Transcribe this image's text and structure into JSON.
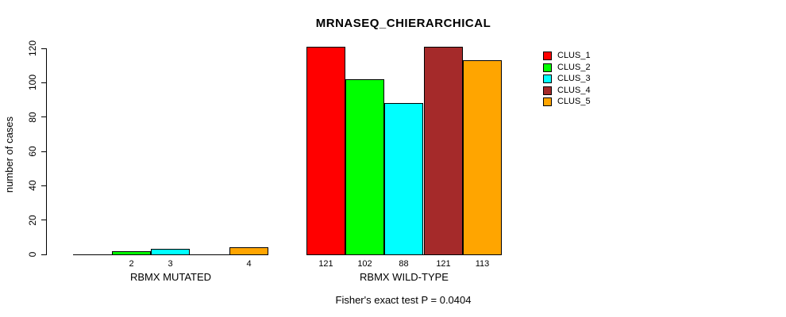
{
  "chart_data": {
    "type": "bar",
    "title": "MRNASEQ_CHIERARCHICAL",
    "ylabel": "number of cases",
    "xlabel": "",
    "ylim": [
      0,
      120
    ],
    "yticks": [
      0,
      20,
      40,
      60,
      80,
      100,
      120
    ],
    "grid": false,
    "legend_position": "right",
    "clusters": [
      {
        "name": "CLUS_1",
        "color": "#FF0000"
      },
      {
        "name": "CLUS_2",
        "color": "#00FF00"
      },
      {
        "name": "CLUS_3",
        "color": "#00FFFF"
      },
      {
        "name": "CLUS_4",
        "color": "#A52A2A"
      },
      {
        "name": "CLUS_5",
        "color": "#FFA500"
      }
    ],
    "groups": [
      {
        "label": "RBMX MUTATED",
        "values": [
          0,
          2,
          3,
          0,
          4
        ],
        "bar_labels": [
          "",
          "2",
          "3",
          "",
          "4"
        ]
      },
      {
        "label": "RBMX WILD-TYPE",
        "values": [
          121,
          102,
          88,
          121,
          113
        ],
        "bar_labels": [
          "121",
          "102",
          "88",
          "121",
          "113"
        ]
      }
    ],
    "footnote": "Fisher's exact test P = 0.0404"
  }
}
